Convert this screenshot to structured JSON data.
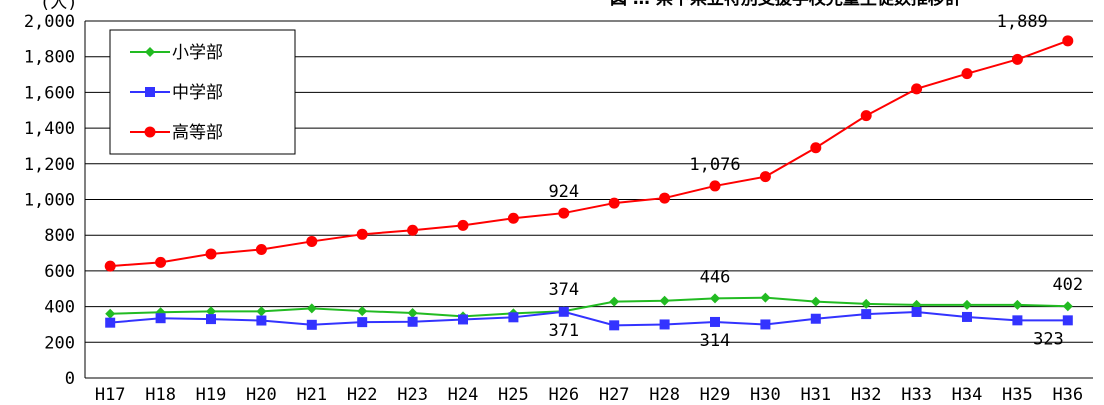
{
  "chart_data": {
    "type": "line",
    "title": "図 … 県下県立特別支援学校児童生徒数推移計",
    "ylabel": "(人)",
    "xlabel": "",
    "categories": [
      "H17",
      "H18",
      "H19",
      "H20",
      "H21",
      "H22",
      "H23",
      "H24",
      "H25",
      "H26",
      "H27",
      "H28",
      "H29",
      "H30",
      "H31",
      "H32",
      "H33",
      "H34",
      "H35",
      "H36"
    ],
    "ylim": [
      0,
      2000
    ],
    "yticks": [
      0,
      200,
      400,
      600,
      800,
      1000,
      1200,
      1400,
      1600,
      1800,
      2000
    ],
    "ytick_labels": [
      "0",
      "200",
      "400",
      "600",
      "800",
      "1,000",
      "1,200",
      "1,400",
      "1,600",
      "1,800",
      "2,000"
    ],
    "grid": true,
    "legend_position": "top-left",
    "series": [
      {
        "name": "小学部",
        "color": "#22bb22",
        "marker": "diamond",
        "values": [
          360,
          368,
          373,
          373,
          390,
          375,
          364,
          345,
          362,
          374,
          428,
          433,
          446,
          450,
          428,
          415,
          410,
          410,
          410,
          402
        ]
      },
      {
        "name": "中学部",
        "color": "#3333ff",
        "marker": "square",
        "values": [
          310,
          335,
          330,
          322,
          298,
          313,
          315,
          328,
          340,
          371,
          295,
          300,
          314,
          300,
          332,
          358,
          370,
          342,
          323,
          323
        ]
      },
      {
        "name": "高等部",
        "color": "#ff0000",
        "marker": "circle",
        "values": [
          627,
          648,
          695,
          720,
          765,
          805,
          828,
          855,
          895,
          924,
          980,
          1008,
          1076,
          1128,
          1290,
          1470,
          1620,
          1705,
          1785,
          1889
        ]
      }
    ],
    "data_labels": [
      {
        "series": 2,
        "index": 9,
        "text": "924",
        "pos": "above"
      },
      {
        "series": 2,
        "index": 12,
        "text": "1,076",
        "pos": "above"
      },
      {
        "series": 2,
        "index": 19,
        "text": "1,889",
        "pos": "above-left"
      },
      {
        "series": 0,
        "index": 9,
        "text": "374",
        "pos": "above"
      },
      {
        "series": 0,
        "index": 12,
        "text": "446",
        "pos": "above"
      },
      {
        "series": 0,
        "index": 19,
        "text": "402",
        "pos": "above"
      },
      {
        "series": 1,
        "index": 9,
        "text": "371",
        "pos": "below"
      },
      {
        "series": 1,
        "index": 12,
        "text": "314",
        "pos": "below"
      },
      {
        "series": 1,
        "index": 19,
        "text": "323",
        "pos": "below-left"
      }
    ]
  }
}
